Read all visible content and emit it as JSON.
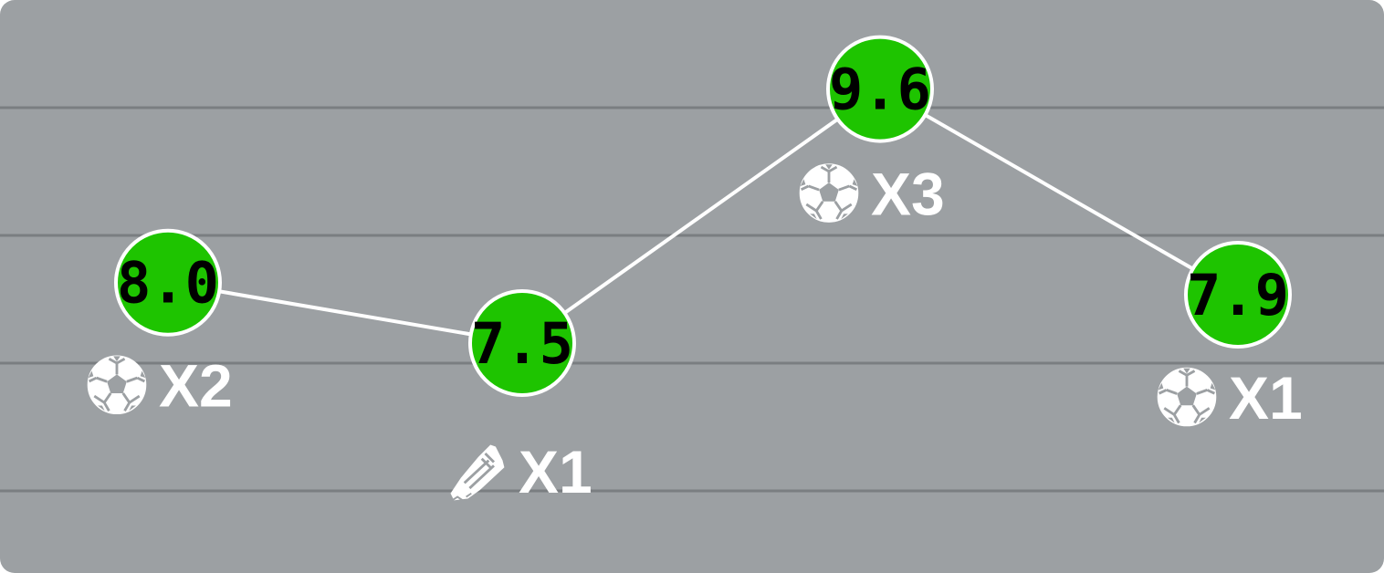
{
  "chart_data": {
    "type": "line",
    "categories": [
      "",
      "",
      "",
      ""
    ],
    "values": [
      8.0,
      7.5,
      9.6,
      7.9
    ],
    "value_labels": [
      "8.0",
      "7.5",
      "9.6",
      "7.9"
    ],
    "events": [
      {
        "icon": "soccer-ball-icon",
        "count_label": "X2"
      },
      {
        "icon": "boot-icon",
        "count_label": "X1"
      },
      {
        "icon": "soccer-ball-icon",
        "count_label": "X3"
      },
      {
        "icon": "soccer-ball-icon",
        "count_label": "X1"
      }
    ],
    "ylim": [
      5.6,
      10.2
    ],
    "grid": true,
    "title": "",
    "xlabel": "",
    "ylabel": ""
  },
  "colors": {
    "background": "#9ca0a3",
    "gridline": "#7a7e81",
    "line": "#ffffff",
    "marker_fill": "#1ec400",
    "marker_stroke": "#ffffff",
    "rating_text": "#000000",
    "event_text": "#ffffff"
  }
}
